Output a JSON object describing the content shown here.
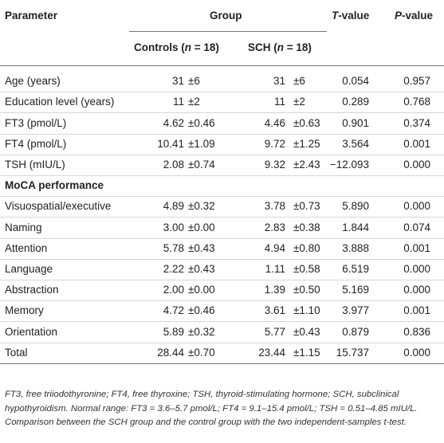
{
  "table": {
    "header": {
      "parameter": "Parameter",
      "group": "Group",
      "controls": [
        "Controls (",
        "n",
        " = 18)"
      ],
      "sch": [
        "SCH (",
        "n",
        " = 18)"
      ],
      "t_value": [
        "T",
        "-value"
      ],
      "p_value": [
        "P",
        "-value"
      ]
    },
    "rows": [
      [
        "Age (years)",
        "31",
        "±6",
        "31",
        "±6",
        "0.054",
        "0.957"
      ],
      [
        "Education level (years)",
        "11",
        "±2",
        "11",
        "±2",
        "0.289",
        "0.768"
      ],
      [
        "FT3 (pmol/L)",
        "4.62",
        "±0.46",
        "4.46",
        "±0.63",
        "0.901",
        "0.374"
      ],
      [
        "FT4 (pmol/L)",
        "10.41",
        "±1.09",
        "9.72",
        "±1.25",
        "3.564",
        "0.001"
      ],
      [
        "TSH (mIU/L)",
        "2.08",
        "±0.74",
        "9.32",
        "±2.43",
        "−12.093",
        "0.000"
      ],
      {
        "section": "MoCA performance"
      },
      [
        "Visuospatial/executive",
        "4.89",
        "±0.32",
        "3.78",
        "±0.73",
        "5.890",
        "0.000"
      ],
      [
        "Naming",
        "3.00",
        "±0.00",
        "2.83",
        "±0.38",
        "1.844",
        "0.074"
      ],
      [
        "Attention",
        "5.78",
        "±0.43",
        "4.94",
        "±0.80",
        "3.888",
        "0.001"
      ],
      [
        "Language",
        "2.22",
        "±0.43",
        "1.11",
        "±0.58",
        "6.519",
        "0.000"
      ],
      [
        "Abstraction",
        "2.00",
        "±0.00",
        "1.39",
        "±0.50",
        "5.169",
        "0.000"
      ],
      [
        "Memory",
        "4.72",
        "±0.46",
        "3.61",
        "±1.10",
        "3.977",
        "0.001"
      ],
      [
        "Orientation",
        "5.89",
        "±0.32",
        "5.77",
        "±0.43",
        "0.879",
        "0.836"
      ],
      [
        "Total",
        "28.44",
        "±0.70",
        "23.44",
        "±1.15",
        "15.737",
        "0.000"
      ]
    ],
    "footnote": "FT3, free triiodothyronine; FT4, free thyroxine; TSH, thyroid-stimulating hormone; SCH, subclinical hypothyroidism. Normal range: FT3 = 3.6–5.7 pmol/L; FT4 = 9.1–15.4 pmol/L; TSH = 0.51–4.85 mIU/L. Comparison between the SCH group and the control group with the two independent-samples t-test."
  }
}
